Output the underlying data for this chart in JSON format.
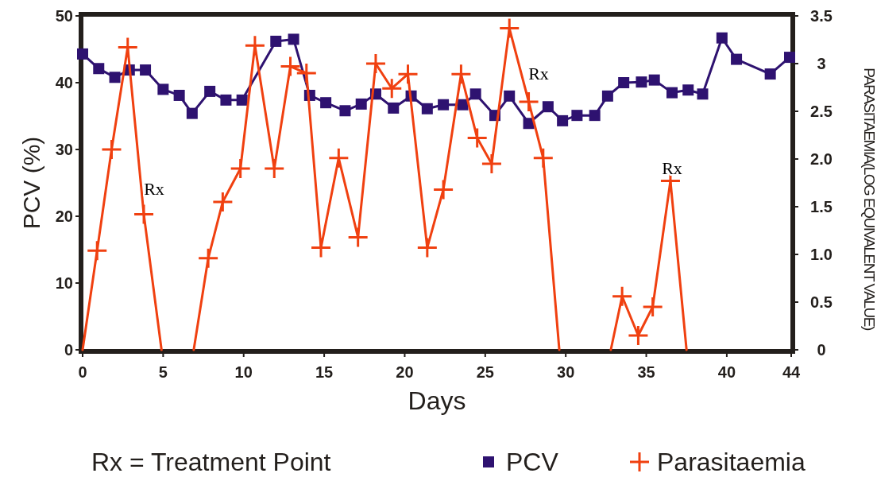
{
  "chart_data": {
    "type": "line",
    "xlabel": "Days",
    "ylabel": "PCV (%)",
    "y2label": "PARASITAEMIA(LOG EQUIVALENT VALUE)",
    "xlim": [
      0,
      44
    ],
    "xticks": [
      0,
      5,
      10,
      15,
      20,
      25,
      30,
      35,
      40,
      44
    ],
    "ylim": [
      0,
      50
    ],
    "yticks": [
      0,
      10,
      20,
      30,
      40,
      50
    ],
    "y2lim": [
      0,
      3.5
    ],
    "y2ticks": [
      {
        "value": 0,
        "label": "0"
      },
      {
        "value": 0.5,
        "label": "0.5"
      },
      {
        "value": 1,
        "label": "1.0"
      },
      {
        "value": 1.5,
        "label": "1.5"
      },
      {
        "value": 2,
        "label": "2.0"
      },
      {
        "value": 2.5,
        "label": "2.5"
      },
      {
        "value": 3,
        "label": "3"
      },
      {
        "value": 3.5,
        "label": "3.5"
      }
    ],
    "grid": false,
    "legend": "bottom",
    "line_style": "solid",
    "series": [
      {
        "name": "PCV",
        "color": "#2e1270",
        "marker": "square",
        "x": [
          0,
          1,
          2,
          2.9,
          3.9,
          5,
          6,
          6.8,
          7.9,
          8.9,
          9.9,
          12,
          13.1,
          14.1,
          15.1,
          16.3,
          17.3,
          18.2,
          19.3,
          20.4,
          21.4,
          22.4,
          23.6,
          24.4,
          25.6,
          26.5,
          27.7,
          28.9,
          29.8,
          30.7,
          31.8,
          32.6,
          33.6,
          34.7,
          35.5,
          36.6,
          37.6,
          38.5,
          39.7,
          40.6,
          42.7,
          43.9
        ],
        "values": [
          44.3,
          42.1,
          40.8,
          41.9,
          41.9,
          39,
          38.1,
          35.4,
          38.7,
          37.4,
          37.4,
          46.2,
          46.5,
          38.1,
          37,
          35.8,
          36.8,
          38.3,
          36.2,
          38,
          36.1,
          36.7,
          36.7,
          38.3,
          35.1,
          38,
          33.9,
          36.4,
          34.3,
          35.1,
          35.1,
          38,
          40,
          40.1,
          40.4,
          38.5,
          38.9,
          38.3,
          46.7,
          43.5,
          41.3,
          43.8
        ]
      },
      {
        "name": "Parasitaemia",
        "color": "#f04010",
        "marker": "cross",
        "axis": "y2",
        "x": [
          0,
          0.9,
          1.8,
          2.8,
          3.8,
          4.9,
          6,
          6.9,
          7.8,
          8.7,
          9.8,
          10.7,
          11.9,
          12.9,
          13.9,
          14.8,
          15.9,
          17.1,
          18.2,
          19.2,
          20.2,
          21.4,
          22.4,
          23.5,
          24.5,
          25.4,
          26.5,
          27.7,
          28.6,
          29.6,
          31,
          32.8,
          33.5,
          34.5,
          35.4,
          36.5,
          37.5
        ],
        "values": [
          0,
          1.04,
          2.1,
          3.17,
          1.42,
          0,
          null,
          0,
          0.96,
          1.55,
          1.9,
          3.19,
          1.9,
          2.97,
          2.9,
          1.07,
          2.01,
          1.18,
          3.0,
          2.74,
          2.89,
          1.07,
          1.68,
          2.89,
          2.22,
          1.95,
          3.37,
          2.6,
          2.01,
          0,
          null,
          0,
          0.56,
          0.15,
          0.45,
          1.77,
          0
        ]
      }
    ],
    "annotations": [
      "Rx",
      "Rx",
      "Rx",
      "Rx = Treatment Point"
    ]
  }
}
